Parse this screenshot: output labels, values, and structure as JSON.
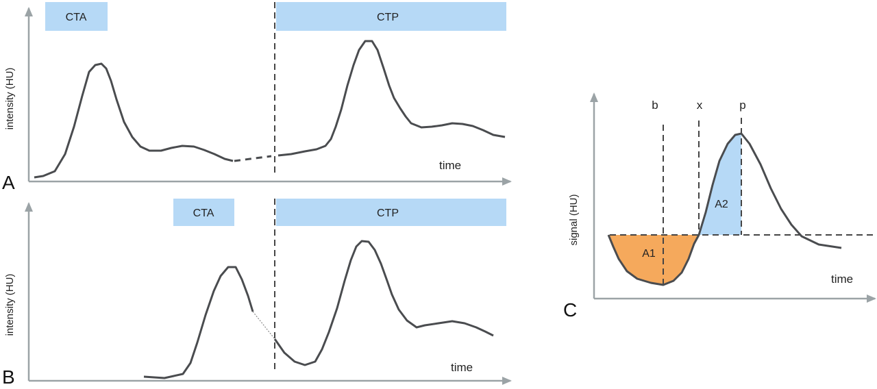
{
  "colors": {
    "axis": "#9ba3a6",
    "curve": "#4a4c4f",
    "phase_box": "#b6d9f6",
    "area_a1": "#f5a95c",
    "area_a2": "#b6d9f6",
    "dash": "#444444"
  },
  "panels": {
    "A": {
      "letter": "A",
      "ylabel": "intensity (HU)",
      "xlabel": "time",
      "box_cta": "CTA",
      "box_ctp": "CTP"
    },
    "B": {
      "letter": "B",
      "ylabel": "intensity (HU)",
      "xlabel": "time",
      "box_cta": "CTA",
      "box_ctp": "CTP"
    },
    "C": {
      "letter": "C",
      "ylabel": "signal (HU)",
      "xlabel": "time",
      "marker_b": "b",
      "marker_x": "x",
      "marker_p": "p",
      "area_1": "A1",
      "area_2": "A2"
    }
  },
  "icons": {
    "axis_arrow": "arrowhead-icon"
  }
}
